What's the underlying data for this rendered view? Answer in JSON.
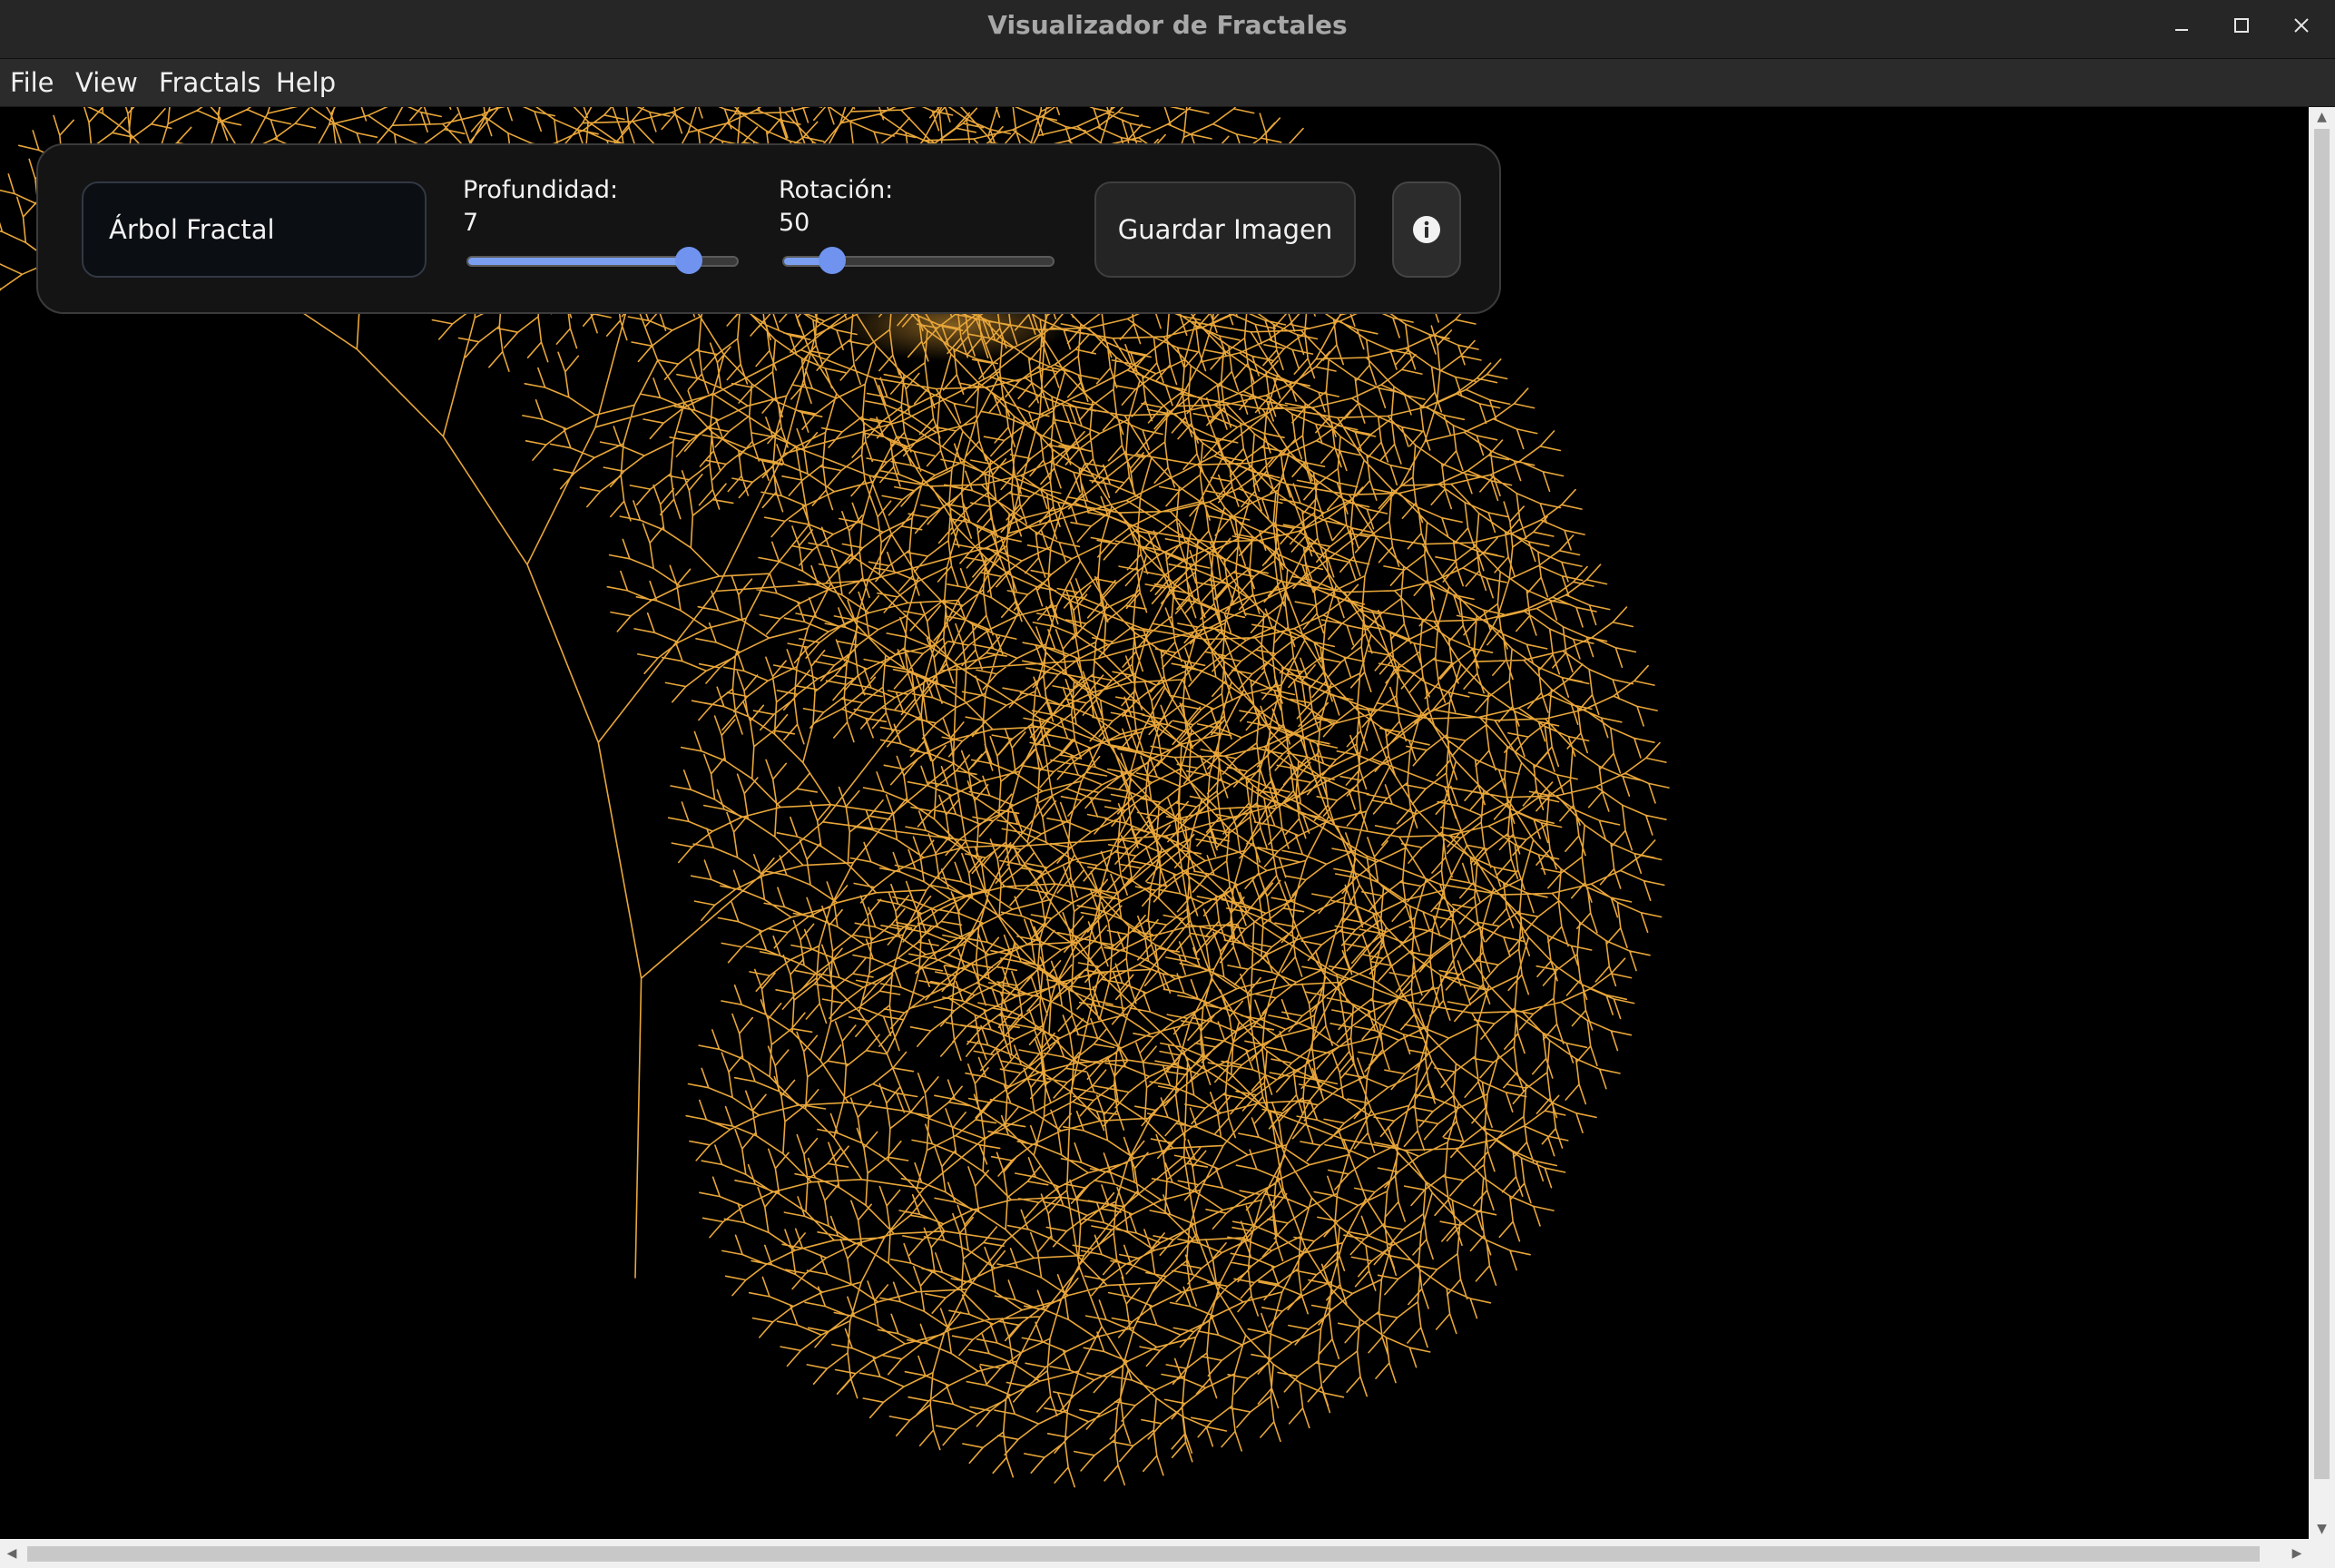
{
  "window": {
    "title": "Visualizador de Fractales",
    "controls": [
      "minimize-icon",
      "maximize-icon",
      "close-icon"
    ]
  },
  "menu": {
    "file": "File",
    "view": "View",
    "fractals": "Fractals",
    "help": "Help"
  },
  "controls": {
    "fractal_selected": "Árbol Fractal",
    "depth": {
      "label": "Profundidad:",
      "value": "7",
      "fraction": 0.82
    },
    "rotation": {
      "label": "Rotación:",
      "value": "50",
      "fraction": 0.18
    },
    "save_label": "Guardar Imagen",
    "info_icon": "info-icon"
  },
  "fractal": {
    "type": "fractal-tree",
    "depth": 7,
    "rotation": 50,
    "color": "#e8a63a",
    "background": "#000000"
  },
  "colors": {
    "accent": "#7b9ff0",
    "fractal": "#e8a63a",
    "panel": "#141414"
  }
}
